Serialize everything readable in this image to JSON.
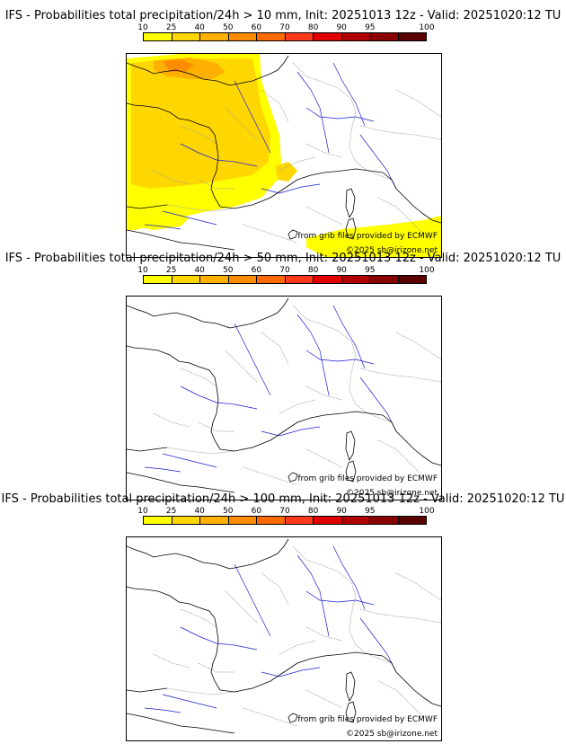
{
  "panels": [
    {
      "title": "IFS - Probabilities total precipitation/24h > 10 mm, Init: 20251013 12z - Valid: 20251020:12 TU",
      "threshold_mm": 10,
      "has_precip": true
    },
    {
      "title": "IFS - Probabilities total precipitation/24h > 50 mm, Init: 20251013 12z - Valid: 20251020:12 TU",
      "threshold_mm": 50,
      "has_precip": false
    },
    {
      "title": "IFS - Probabilities total precipitation/24h > 100 mm, Init: 20251013 12z - Valid: 20251020:12 TU",
      "threshold_mm": 100,
      "has_precip": false
    }
  ],
  "colorbar": {
    "ticks": [
      "10",
      "25",
      "40",
      "50",
      "60",
      "70",
      "80",
      "90",
      "95",
      "100"
    ],
    "colors": [
      "#ffff00",
      "#ffd700",
      "#ffb000",
      "#ff8c00",
      "#ff6a00",
      "#ff3a1a",
      "#e00000",
      "#b00000",
      "#880000",
      "#5a0000"
    ]
  },
  "credits": {
    "source": "from grib files provided by ECMWF",
    "copyright": "©2025 sb@irizone.net"
  },
  "map_colors": {
    "coast": "#000000",
    "rivers": "#1c1cd6",
    "borders": "#a0a0a0",
    "precip_light": "#ffd700",
    "precip_yellow": "#ffff00",
    "precip_orange": "#ffb000",
    "precip_dark": "#ff8c00"
  }
}
